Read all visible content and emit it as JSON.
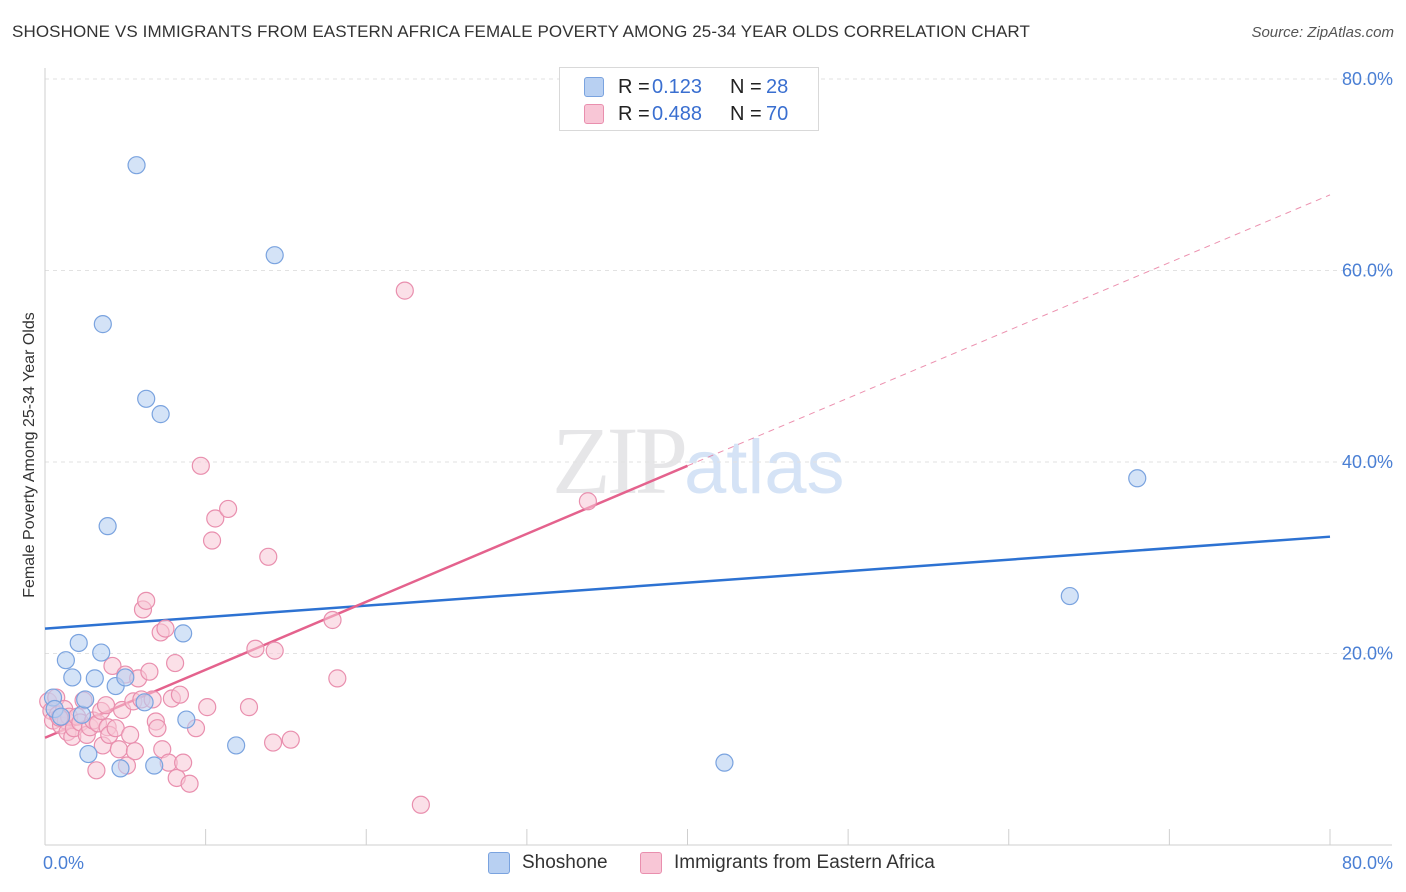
{
  "title": "SHOSHONE VS IMMIGRANTS FROM EASTERN AFRICA FEMALE POVERTY AMONG 25-34 YEAR OLDS CORRELATION CHART",
  "source": "Source: ZipAtlas.com",
  "watermark": {
    "zip": "ZIP",
    "atlas": "atlas"
  },
  "legend_top": [
    {
      "r_label": "R =",
      "r_value": "0.123",
      "n_label": "N =",
      "n_value": "28"
    },
    {
      "r_label": "R =",
      "r_value": "0.488",
      "n_label": "N =",
      "n_value": "70"
    }
  ],
  "legend_bottom": [
    "Shoshone",
    "Immigrants from Eastern Africa"
  ],
  "colors": {
    "shoshone_fill": "#b8d0f2",
    "shoshone_stroke": "#7aa3df",
    "shoshone_line": "#2d72d2",
    "eafrica_fill": "#f8c6d6",
    "eafrica_stroke": "#e98fae",
    "eafrica_line": "#e4628d",
    "grid": "#e2e2e2",
    "tick_text": "#4a7fd4"
  },
  "chart_data": {
    "type": "scatter",
    "title": "SHOSHONE VS IMMIGRANTS FROM EASTERN AFRICA FEMALE POVERTY AMONG 25-34 YEAR OLDS CORRELATION CHART",
    "xlabel": "",
    "ylabel": "Female Poverty Among 25-34 Year Olds",
    "xlim": [
      0,
      80
    ],
    "ylim": [
      0,
      80
    ],
    "x_tick_labels": [
      "0.0%",
      "80.0%"
    ],
    "y_tick_labels": [
      "20.0%",
      "40.0%",
      "60.0%",
      "80.0%"
    ],
    "y_ticks": [
      20,
      40,
      60,
      80
    ],
    "series": [
      {
        "name": "Shoshone",
        "R": 0.123,
        "N": 28,
        "trend": {
          "x0": 0,
          "y0": 22.6,
          "x1": 80,
          "y1": 32.2
        },
        "points": [
          [
            0.5,
            15.4
          ],
          [
            0.6,
            14.2
          ],
          [
            1.0,
            13.4
          ],
          [
            1.3,
            19.3
          ],
          [
            1.7,
            17.5
          ],
          [
            2.1,
            21.1
          ],
          [
            2.3,
            13.6
          ],
          [
            2.5,
            15.2
          ],
          [
            2.7,
            9.5
          ],
          [
            3.1,
            17.4
          ],
          [
            3.5,
            20.1
          ],
          [
            3.6,
            54.4
          ],
          [
            3.9,
            33.3
          ],
          [
            4.4,
            16.6
          ],
          [
            4.7,
            8.0
          ],
          [
            5.0,
            17.5
          ],
          [
            5.7,
            71.0
          ],
          [
            6.2,
            14.9
          ],
          [
            6.3,
            46.6
          ],
          [
            6.8,
            8.3
          ],
          [
            7.2,
            45.0
          ],
          [
            8.6,
            22.1
          ],
          [
            8.8,
            13.1
          ],
          [
            11.9,
            10.4
          ],
          [
            14.3,
            61.6
          ],
          [
            42.3,
            8.6
          ],
          [
            63.8,
            26.0
          ],
          [
            68.0,
            38.3
          ]
        ]
      },
      {
        "name": "Immigrants from Eastern Africa",
        "R": 0.488,
        "N": 70,
        "trend": {
          "x0": 0,
          "y0": 11.2,
          "x1": 40,
          "y1": 39.6
        },
        "trend_ext": {
          "x0": 40,
          "y0": 39.6,
          "x1": 80,
          "y1": 67.9
        },
        "points": [
          [
            0.2,
            15.0
          ],
          [
            0.4,
            14.0
          ],
          [
            0.5,
            13.0
          ],
          [
            0.7,
            15.4
          ],
          [
            0.8,
            13.6
          ],
          [
            1.0,
            12.5
          ],
          [
            1.2,
            14.2
          ],
          [
            1.3,
            13.0
          ],
          [
            1.4,
            11.8
          ],
          [
            1.5,
            13.4
          ],
          [
            1.7,
            11.3
          ],
          [
            1.8,
            12.2
          ],
          [
            2.0,
            13.4
          ],
          [
            2.2,
            12.8
          ],
          [
            2.4,
            15.1
          ],
          [
            2.6,
            11.5
          ],
          [
            2.8,
            12.3
          ],
          [
            3.0,
            13.0
          ],
          [
            3.2,
            7.8
          ],
          [
            3.3,
            12.7
          ],
          [
            3.5,
            14.0
          ],
          [
            3.6,
            10.4
          ],
          [
            3.8,
            14.6
          ],
          [
            3.9,
            12.3
          ],
          [
            4.0,
            11.5
          ],
          [
            4.2,
            18.7
          ],
          [
            4.4,
            12.2
          ],
          [
            4.6,
            10.0
          ],
          [
            4.8,
            14.1
          ],
          [
            5.0,
            17.8
          ],
          [
            5.1,
            8.3
          ],
          [
            5.3,
            11.5
          ],
          [
            5.5,
            15.0
          ],
          [
            5.6,
            9.8
          ],
          [
            5.8,
            17.4
          ],
          [
            6.0,
            15.2
          ],
          [
            6.1,
            24.6
          ],
          [
            6.3,
            25.5
          ],
          [
            6.5,
            18.1
          ],
          [
            6.7,
            15.2
          ],
          [
            6.9,
            12.9
          ],
          [
            7.0,
            12.2
          ],
          [
            7.2,
            22.2
          ],
          [
            7.3,
            10.0
          ],
          [
            7.5,
            22.6
          ],
          [
            7.7,
            8.6
          ],
          [
            7.9,
            15.3
          ],
          [
            8.1,
            19.0
          ],
          [
            8.2,
            7.0
          ],
          [
            8.4,
            15.7
          ],
          [
            8.6,
            8.6
          ],
          [
            9.0,
            6.4
          ],
          [
            9.4,
            12.2
          ],
          [
            9.7,
            39.6
          ],
          [
            10.1,
            14.4
          ],
          [
            10.4,
            31.8
          ],
          [
            10.6,
            34.1
          ],
          [
            11.4,
            35.1
          ],
          [
            12.7,
            14.4
          ],
          [
            13.1,
            20.5
          ],
          [
            13.9,
            30.1
          ],
          [
            14.2,
            10.7
          ],
          [
            14.3,
            20.3
          ],
          [
            15.3,
            11.0
          ],
          [
            17.9,
            23.5
          ],
          [
            18.2,
            17.4
          ],
          [
            22.4,
            57.9
          ],
          [
            23.4,
            4.2
          ],
          [
            33.8,
            35.9
          ],
          [
            0.9,
            13.3
          ]
        ]
      }
    ]
  }
}
